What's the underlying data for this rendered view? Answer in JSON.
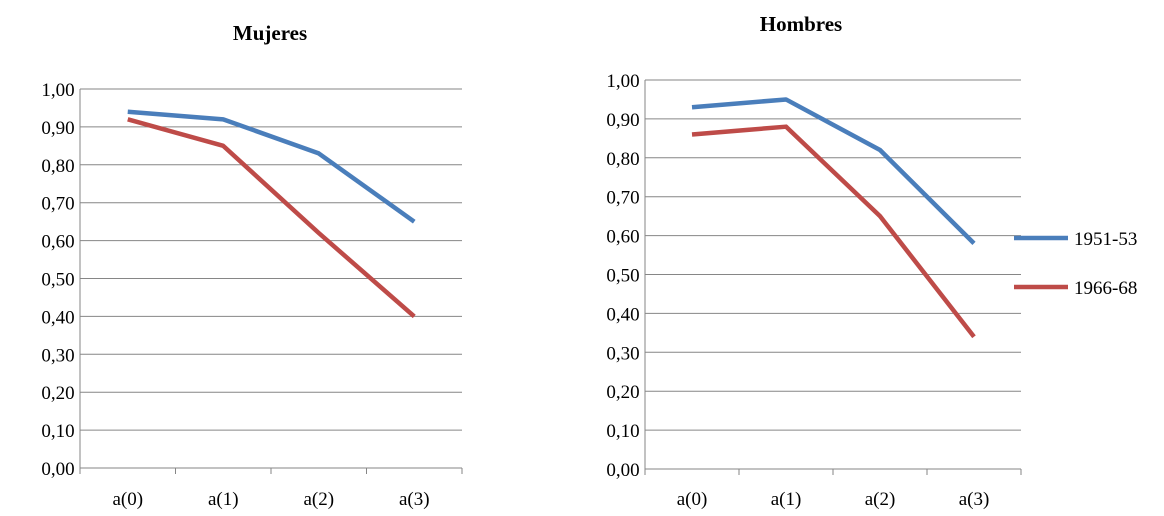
{
  "chart_data": [
    {
      "type": "line",
      "title": "Mujeres",
      "xlabel": "",
      "ylabel": "",
      "categories": [
        "a(0)",
        "a(1)",
        "a(2)",
        "a(3)"
      ],
      "ylim": [
        0,
        1
      ],
      "yticks": [
        "0,00",
        "0,10",
        "0,20",
        "0,30",
        "0,40",
        "0,50",
        "0,60",
        "0,70",
        "0,80",
        "0,90",
        "1,00"
      ],
      "grid": true,
      "legend": "none",
      "series": [
        {
          "name": "1951-53",
          "color": "#4a7ebb",
          "values": [
            0.94,
            0.92,
            0.83,
            0.65
          ]
        },
        {
          "name": "1966-68",
          "color": "#be4b48",
          "values": [
            0.92,
            0.85,
            0.62,
            0.4
          ]
        }
      ]
    },
    {
      "type": "line",
      "title": "Hombres",
      "xlabel": "",
      "ylabel": "",
      "categories": [
        "a(0)",
        "a(1)",
        "a(2)",
        "a(3)"
      ],
      "ylim": [
        0,
        1
      ],
      "yticks": [
        "0,00",
        "0,10",
        "0,20",
        "0,30",
        "0,40",
        "0,50",
        "0,60",
        "0,70",
        "0,80",
        "0,90",
        "1,00"
      ],
      "grid": true,
      "legend": "right",
      "series": [
        {
          "name": "1951-53",
          "color": "#4a7ebb",
          "values": [
            0.93,
            0.95,
            0.82,
            0.58
          ]
        },
        {
          "name": "1966-68",
          "color": "#be4b48",
          "values": [
            0.86,
            0.88,
            0.65,
            0.34
          ]
        }
      ]
    }
  ]
}
